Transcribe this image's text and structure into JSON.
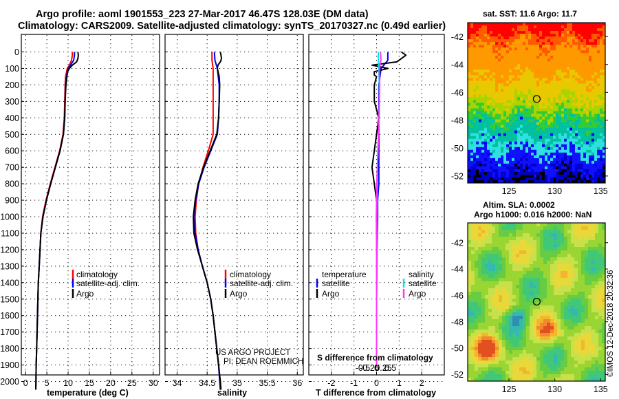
{
  "title": {
    "line1": "Argo profile: aoml 1901553_223 27-Mar-2017 46.47S 128.03E (DM data)",
    "line2": "Climatology: CARS2009. Satellite-adjusted climatology: synTS_20170327.nc (0.49d earlier)"
  },
  "colors": {
    "climatology": "#ff0000",
    "satellite": "#0000ee",
    "argo": "#000000",
    "sat_salinity": "#00e5e5",
    "argo_salinity": "#ff33ff"
  },
  "credit": {
    "project": "US ARGO PROJECT",
    "pi": "PI: DEAN ROEMMICH",
    "imos": "©IMOS 12-Dec-2018 20:32:36"
  },
  "chart_data": [
    {
      "type": "line",
      "id": "temperature",
      "xlabel": "temperature (deg C)",
      "ylabel": "depth",
      "xlim": [
        -1,
        31.5
      ],
      "ylim": [
        2075,
        0
      ],
      "xticks": [
        0,
        5,
        10,
        15,
        20,
        25,
        30
      ],
      "yticks": [
        0,
        100,
        200,
        300,
        400,
        500,
        600,
        700,
        800,
        900,
        1000,
        1100,
        1200,
        1300,
        1400,
        1500,
        1600,
        1700,
        1800,
        1900,
        2000
      ],
      "legend": [
        "climatology",
        "satellite-adj. clim.",
        "Argo"
      ],
      "series": [
        {
          "name": "climatology",
          "depth": [
            0,
            20,
            50,
            80,
            100,
            150,
            200,
            300,
            400,
            500,
            600,
            700,
            800,
            900,
            1000,
            1100,
            1200,
            1300,
            1400,
            1500,
            1600,
            1700,
            1800,
            1900,
            2000,
            2050
          ],
          "values": [
            11.0,
            11.0,
            10.8,
            10.3,
            9.8,
            9.4,
            9.3,
            9.2,
            9.1,
            8.8,
            8.0,
            6.9,
            5.8,
            4.8,
            4.0,
            3.6,
            3.4,
            3.2,
            3.0,
            2.9,
            2.8,
            2.7,
            2.6,
            2.5,
            2.45,
            2.4
          ]
        },
        {
          "name": "satellite-adj. clim.",
          "depth": [
            0,
            20,
            50,
            80,
            100,
            150,
            200,
            300,
            400,
            500,
            600,
            700,
            800,
            900,
            1000,
            1100,
            1200,
            1300,
            1400,
            1500,
            1600,
            1700,
            1800,
            1900,
            2000,
            2050
          ],
          "values": [
            11.5,
            11.5,
            11.3,
            10.6,
            10.0,
            9.6,
            9.4,
            9.3,
            9.2,
            8.9,
            8.1,
            7.0,
            5.9,
            4.9,
            4.1,
            3.6,
            3.4,
            3.2,
            3.0,
            2.9,
            2.8,
            2.7,
            2.6,
            2.5,
            2.45,
            2.4
          ]
        },
        {
          "name": "Argo",
          "depth": [
            0,
            20,
            40,
            60,
            80,
            100,
            120,
            150,
            200,
            300,
            400,
            500,
            600,
            700,
            800,
            900,
            1000,
            1100,
            1200,
            1300,
            1400,
            1500,
            1600,
            1700,
            1800,
            1900,
            2000,
            2050
          ],
          "values": [
            12.3,
            12.4,
            12.3,
            12.0,
            11.0,
            10.3,
            9.9,
            9.7,
            9.5,
            9.3,
            9.2,
            8.9,
            8.1,
            7.0,
            5.9,
            4.9,
            4.1,
            3.6,
            3.4,
            3.2,
            3.0,
            2.9,
            2.8,
            2.7,
            2.6,
            2.5,
            2.45,
            2.4
          ]
        }
      ]
    },
    {
      "type": "line",
      "id": "salinity",
      "xlabel": "salinity",
      "ylabel": "depth",
      "xlim": [
        33.8,
        36.1
      ],
      "ylim": [
        2075,
        0
      ],
      "xticks": [
        34,
        34.5,
        35,
        35.5,
        36
      ],
      "legend": [
        "climatology",
        "satellite-adj. clim.",
        "Argo"
      ],
      "series": [
        {
          "name": "climatology",
          "depth": [
            0,
            50,
            100,
            200,
            300,
            400,
            500,
            600,
            700,
            800,
            900,
            1000,
            1100,
            1200,
            1300,
            1400,
            1500,
            1600,
            1700,
            1800,
            1900,
            2000,
            2050
          ],
          "values": [
            34.58,
            34.58,
            34.6,
            34.6,
            34.6,
            34.6,
            34.6,
            34.52,
            34.43,
            34.36,
            34.32,
            34.3,
            34.31,
            34.35,
            34.42,
            34.5,
            34.56,
            34.6,
            34.63,
            34.66,
            34.69,
            34.71,
            34.72
          ]
        },
        {
          "name": "satellite-adj. clim.",
          "depth": [
            0,
            50,
            100,
            200,
            300,
            400,
            500,
            600,
            700,
            800,
            900,
            1000,
            1100,
            1200,
            1300,
            1400,
            1500,
            1600,
            1700,
            1800,
            1900,
            2000,
            2050
          ],
          "values": [
            34.62,
            34.63,
            34.67,
            34.7,
            34.7,
            34.69,
            34.67,
            34.56,
            34.45,
            34.36,
            34.31,
            34.28,
            34.3,
            34.35,
            34.42,
            34.5,
            34.56,
            34.6,
            34.63,
            34.66,
            34.69,
            34.71,
            34.72
          ]
        },
        {
          "name": "Argo",
          "depth": [
            0,
            20,
            40,
            60,
            80,
            100,
            150,
            200,
            300,
            400,
            500,
            600,
            700,
            800,
            900,
            1000,
            1100,
            1200,
            1300,
            1400,
            1500,
            1600,
            1700,
            1800,
            1900,
            2000,
            2050
          ],
          "values": [
            34.72,
            34.73,
            34.74,
            34.72,
            34.68,
            34.67,
            34.7,
            34.71,
            34.7,
            34.69,
            34.66,
            34.55,
            34.44,
            34.35,
            34.3,
            34.27,
            34.28,
            34.34,
            34.42,
            34.5,
            34.56,
            34.6,
            34.63,
            34.66,
            34.69,
            34.72,
            34.73
          ]
        }
      ]
    },
    {
      "type": "line",
      "id": "difference",
      "xlabel": "T difference from climatology",
      "ylabel": "depth",
      "xlim": [
        -3,
        3
      ],
      "ylim": [
        2075,
        0
      ],
      "xticks": [
        -2,
        -1,
        0,
        1,
        2
      ],
      "sec_xlabel": "S difference from climatology",
      "sec_xticks": [
        -0.5,
        -0.25,
        0,
        0.25,
        0.5
      ],
      "legend_t": [
        "temperature",
        "satellite",
        "Argo"
      ],
      "legend_s": [
        "salinity",
        "satellite",
        "Argo"
      ],
      "series": [
        {
          "name": "T satellite",
          "depth": [
            0,
            50,
            100,
            200,
            300,
            400,
            500,
            600,
            700,
            800,
            900,
            1000,
            1200,
            1500,
            1900
          ],
          "values": [
            0.5,
            0.5,
            0.2,
            0.1,
            0.1,
            0.1,
            0.1,
            0.1,
            0.1,
            0.1,
            0.05,
            0.05,
            0.02,
            0.0,
            0.0
          ]
        },
        {
          "name": "T Argo",
          "depth": [
            0,
            20,
            40,
            60,
            80,
            100,
            120,
            140,
            150,
            200,
            300,
            400,
            500,
            600,
            700,
            800,
            900,
            1000,
            1100,
            1200,
            1300,
            1500,
            1700,
            1900
          ],
          "values": [
            1.1,
            1.3,
            1.1,
            0.9,
            -0.2,
            0.5,
            -0.1,
            -0.1,
            0.0,
            -0.1,
            -0.1,
            0.1,
            0.0,
            -0.1,
            -0.2,
            -0.1,
            0.0,
            0.0,
            0.0,
            0.0,
            0.0,
            0.0,
            0.0,
            0.0
          ]
        },
        {
          "name": "S satellite",
          "depth": [
            0,
            100,
            200,
            300,
            400,
            500,
            600,
            700,
            800,
            900,
            1000,
            1200,
            1500,
            1900
          ],
          "values": [
            0.06,
            0.08,
            0.1,
            0.1,
            0.09,
            0.07,
            0.05,
            0.03,
            0.02,
            0.02,
            0.01,
            0.01,
            0.0,
            0.0
          ]
        },
        {
          "name": "S Argo",
          "depth": [
            0,
            50,
            100,
            200,
            300,
            400,
            500,
            600,
            700,
            800,
            900,
            1000,
            1200,
            1500,
            1900
          ],
          "values": [
            0.14,
            0.16,
            0.1,
            0.11,
            0.1,
            0.09,
            0.07,
            0.05,
            0.03,
            0.01,
            0.0,
            -0.01,
            0.0,
            0.0,
            0.0
          ]
        }
      ]
    },
    {
      "type": "heatmap",
      "id": "sst-map",
      "title": "sat. SST: 11.6 Argo: 11.7",
      "xlim": [
        120.5,
        135.5
      ],
      "ylim": [
        -52.5,
        -41
      ],
      "xticks": [
        125,
        130,
        135
      ],
      "yticks": [
        -42,
        -44,
        -46,
        -48,
        -50,
        -52
      ],
      "marker": {
        "lon": 128.03,
        "lat": -46.47
      }
    },
    {
      "type": "heatmap",
      "id": "sla-map",
      "title": "Altim. SLA: 0.0002",
      "subtitle": "Argo h1000: 0.016 h2000: NaN",
      "xlim": [
        120.5,
        135.5
      ],
      "ylim": [
        -52.5,
        -40.5
      ],
      "xticks": [
        125,
        130,
        135
      ],
      "yticks": [
        -42,
        -44,
        -46,
        -48,
        -50,
        -52
      ],
      "marker": {
        "lon": 128.03,
        "lat": -46.47
      }
    }
  ]
}
